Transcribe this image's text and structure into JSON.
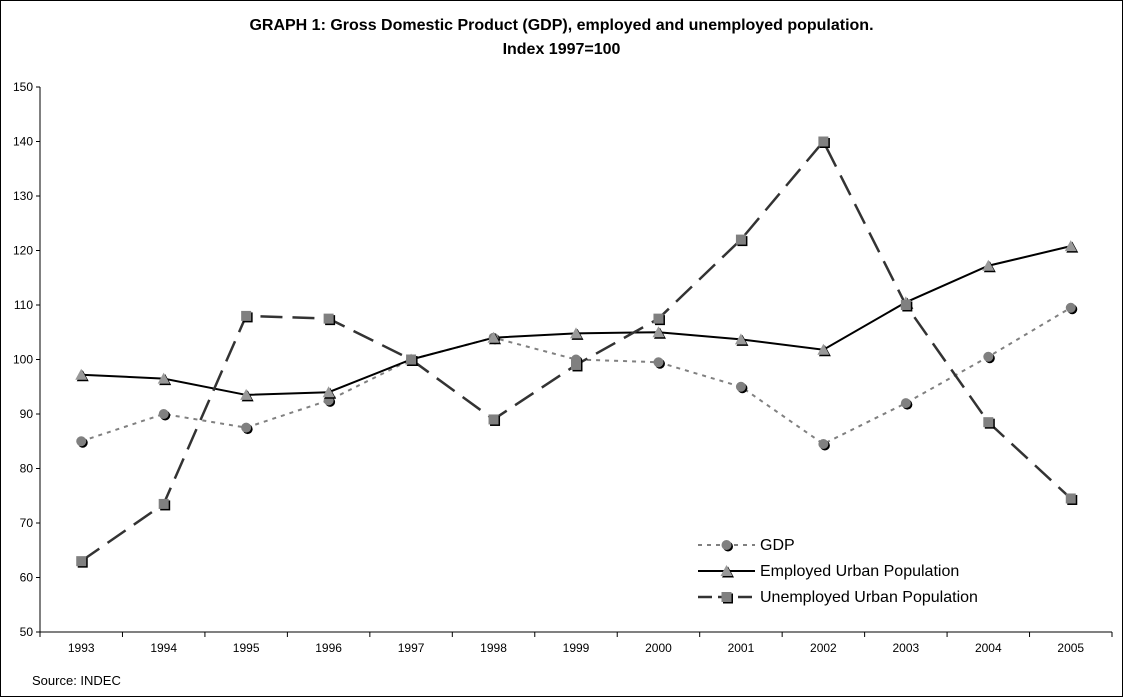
{
  "chart_data": {
    "type": "line",
    "title_line1": "GRAPH 1: Gross Domestic Product (GDP), employed and unemployed population.",
    "title_line2": "Index 1997=100",
    "source": "Source: INDEC",
    "categories": [
      "1993",
      "1994",
      "1995",
      "1996",
      "1997",
      "1998",
      "1999",
      "2000",
      "2001",
      "2002",
      "2003",
      "2004",
      "2005"
    ],
    "ylim": [
      50,
      150
    ],
    "yticks": [
      50,
      60,
      70,
      80,
      90,
      100,
      110,
      120,
      130,
      140,
      150
    ],
    "grid": false,
    "legend_position": "bottom-right",
    "series": [
      {
        "name": "GDP",
        "values": [
          85,
          90,
          87.5,
          92.5,
          100,
          104,
          100,
          99.5,
          95,
          84.5,
          92,
          100.5,
          109.5
        ],
        "color": "#808080",
        "marker": "circle",
        "line_style": "dotted"
      },
      {
        "name": "Employed Urban Population",
        "values": [
          97.2,
          96.5,
          93.5,
          94,
          100,
          104,
          104.8,
          105,
          103.7,
          101.8,
          110.5,
          117.2,
          120.8
        ],
        "color": "#000000",
        "marker": "triangle",
        "line_style": "solid"
      },
      {
        "name": "Unemployed Urban Population",
        "values": [
          63,
          73.5,
          108,
          107.5,
          100,
          89,
          99,
          107.5,
          122,
          140,
          110,
          88.5,
          74.5
        ],
        "color": "#333333",
        "marker": "square",
        "line_style": "dashed"
      }
    ]
  }
}
